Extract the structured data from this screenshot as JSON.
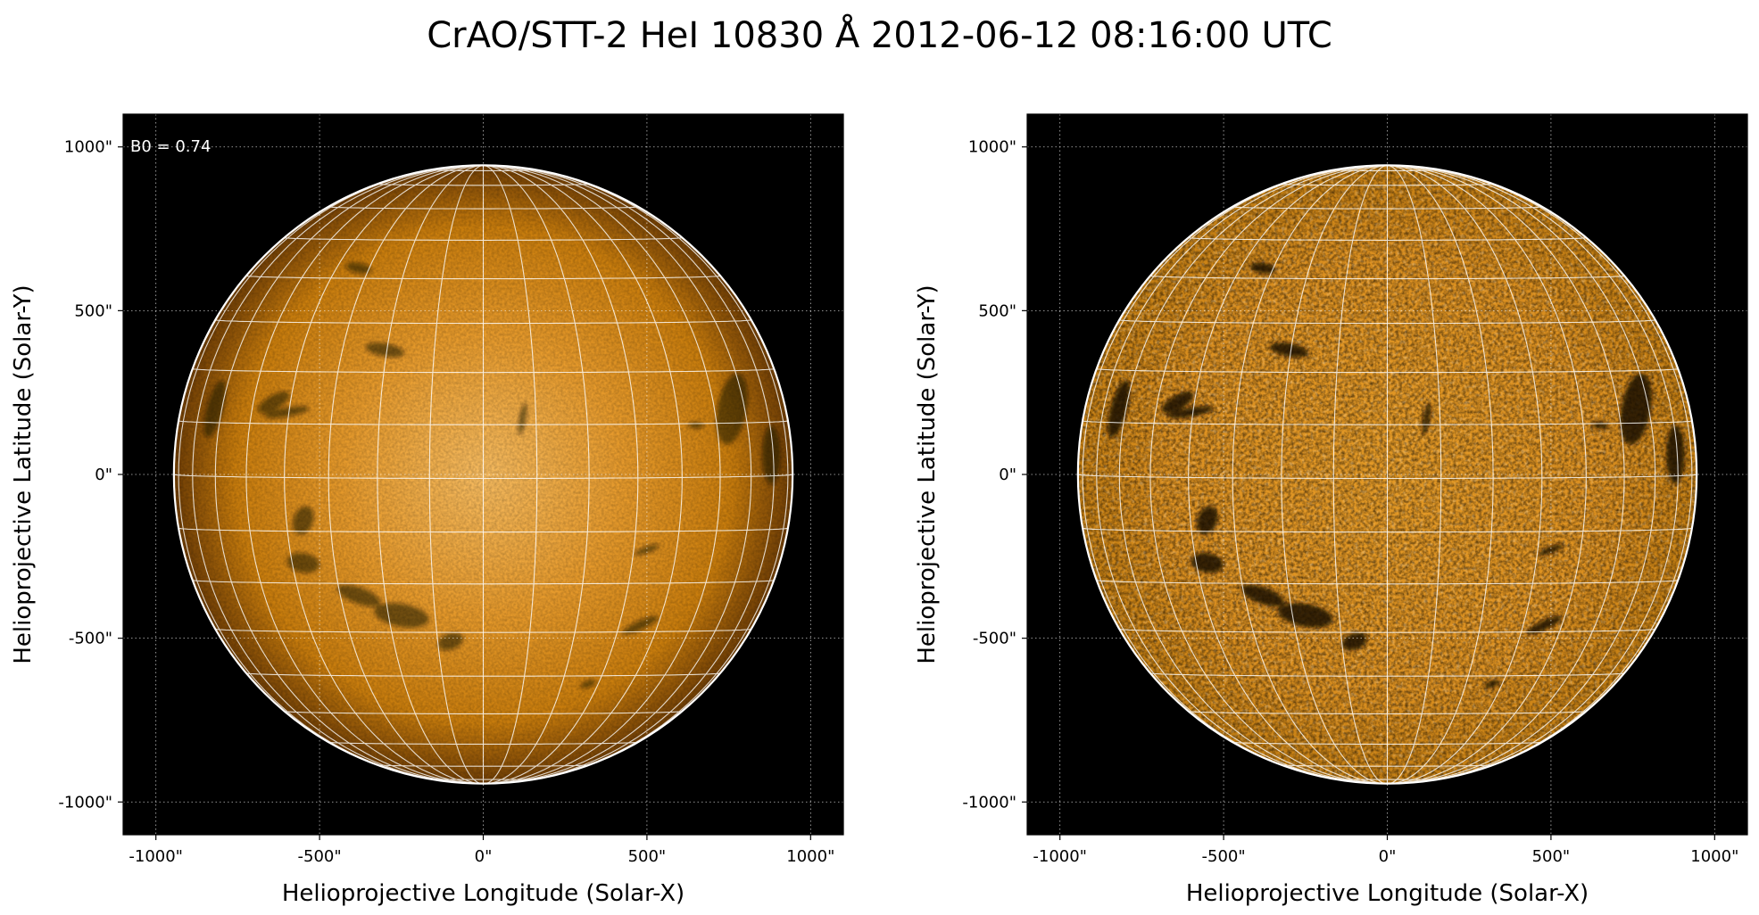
{
  "figure": {
    "title": "CrAO/STT-2 HeI 10830 Å 2012-06-12 08:16:00 UTC"
  },
  "axes": {
    "x_label": "Helioprojective Longitude (Solar-X)",
    "y_label": "Helioprojective Latitude (Solar-Y)",
    "x_ticks": [
      {
        "value": -1000,
        "label": "-1000\""
      },
      {
        "value": -500,
        "label": "-500\""
      },
      {
        "value": 0,
        "label": "0\""
      },
      {
        "value": 500,
        "label": "500\""
      },
      {
        "value": 1000,
        "label": "1000\""
      }
    ],
    "y_ticks": [
      {
        "value": 1000,
        "label": "1000\""
      },
      {
        "value": 500,
        "label": "500\""
      },
      {
        "value": 0,
        "label": "0\""
      },
      {
        "value": -500,
        "label": "-500\""
      },
      {
        "value": -1000,
        "label": "-1000\""
      }
    ],
    "x_range": [
      -1100,
      1100
    ],
    "y_range": [
      -1100,
      1100
    ],
    "axis_grid": "dotted",
    "heliographic_grid": "on"
  },
  "panels": [
    {
      "name": "left-panel",
      "corner_text": "B0 = 0.74",
      "image": "solar disk in He I 10830 Å, orange colormap, limb darkening, dark filaments",
      "solar_radius_arcsec": 945
    },
    {
      "name": "right-panel",
      "corner_text": "",
      "image": "same solar disk after limb-darkening correction, enhanced contrast",
      "solar_radius_arcsec": 945
    }
  ],
  "colors": {
    "background": "#000000",
    "disk_center": "#f3b04e",
    "disk_mid": "#d58a0f",
    "disk_limb": "#7a4606",
    "grid": "#ffffff",
    "filament": "#1a0c00"
  }
}
